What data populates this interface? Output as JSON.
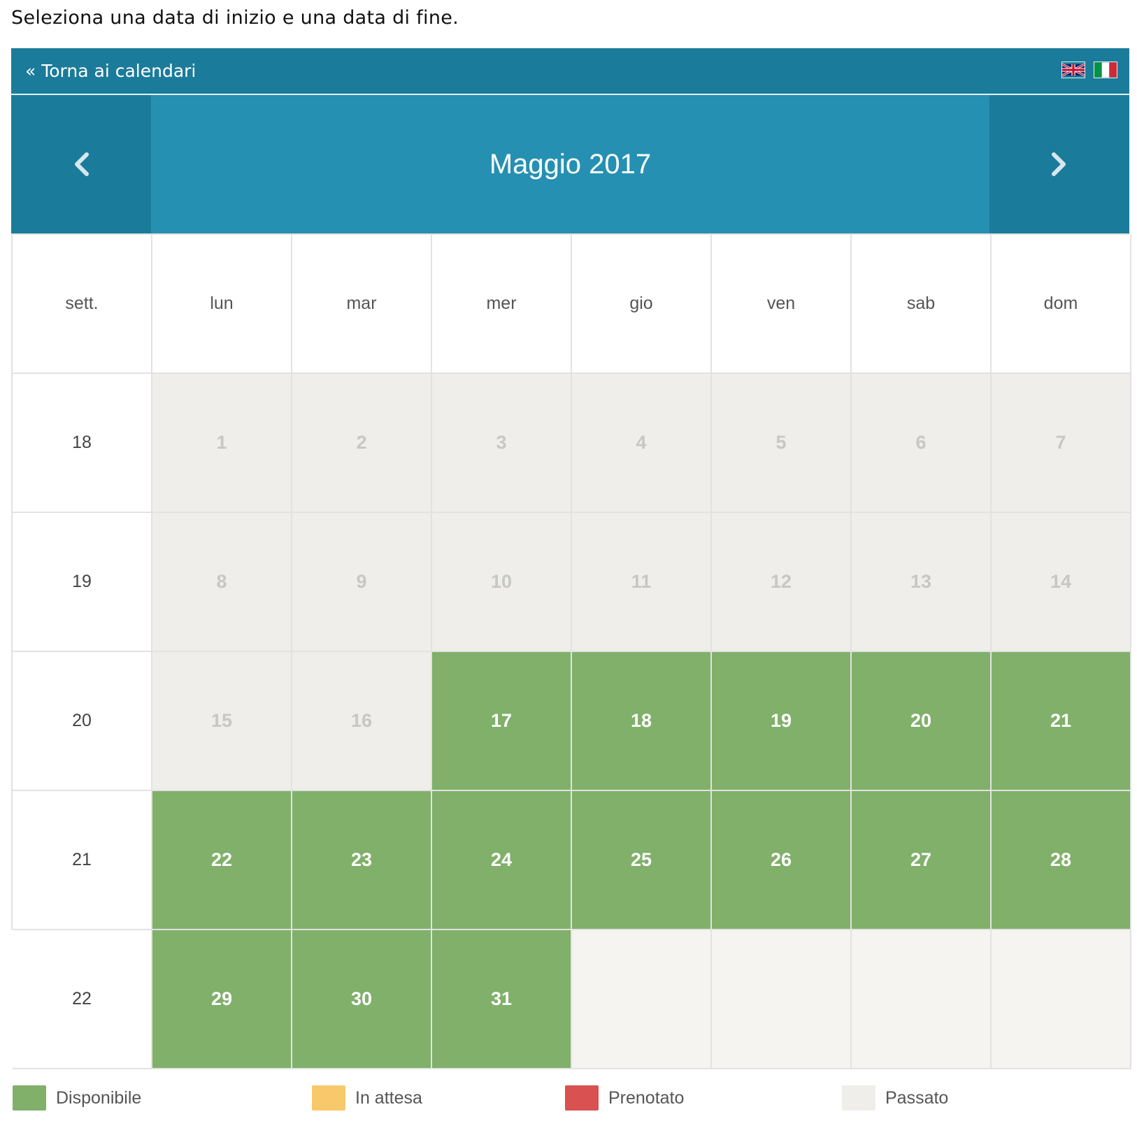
{
  "instruction": "Seleziona una data di inizio e una data di fine.",
  "topbar": {
    "back_label": "« Torna ai calendari",
    "flags": [
      {
        "icon": "uk-flag-icon",
        "lang": "en"
      },
      {
        "icon": "italy-flag-icon",
        "lang": "it"
      }
    ]
  },
  "calendar": {
    "month_label": "Maggio 2017",
    "prev_icon": "chevron-left-icon",
    "next_icon": "chevron-right-icon",
    "headers": [
      "sett.",
      "lun",
      "mar",
      "mer",
      "gio",
      "ven",
      "sab",
      "dom"
    ],
    "weeks": [
      {
        "week": "18",
        "days": [
          {
            "day": "1",
            "status": "past"
          },
          {
            "day": "2",
            "status": "past"
          },
          {
            "day": "3",
            "status": "past"
          },
          {
            "day": "4",
            "status": "past"
          },
          {
            "day": "5",
            "status": "past"
          },
          {
            "day": "6",
            "status": "past"
          },
          {
            "day": "7",
            "status": "past"
          }
        ]
      },
      {
        "week": "19",
        "days": [
          {
            "day": "8",
            "status": "past"
          },
          {
            "day": "9",
            "status": "past"
          },
          {
            "day": "10",
            "status": "past"
          },
          {
            "day": "11",
            "status": "past"
          },
          {
            "day": "12",
            "status": "past"
          },
          {
            "day": "13",
            "status": "past"
          },
          {
            "day": "14",
            "status": "past"
          }
        ]
      },
      {
        "week": "20",
        "days": [
          {
            "day": "15",
            "status": "past"
          },
          {
            "day": "16",
            "status": "past"
          },
          {
            "day": "17",
            "status": "available"
          },
          {
            "day": "18",
            "status": "available"
          },
          {
            "day": "19",
            "status": "available"
          },
          {
            "day": "20",
            "status": "available"
          },
          {
            "day": "21",
            "status": "available"
          }
        ]
      },
      {
        "week": "21",
        "days": [
          {
            "day": "22",
            "status": "available"
          },
          {
            "day": "23",
            "status": "available"
          },
          {
            "day": "24",
            "status": "available"
          },
          {
            "day": "25",
            "status": "available"
          },
          {
            "day": "26",
            "status": "available"
          },
          {
            "day": "27",
            "status": "available"
          },
          {
            "day": "28",
            "status": "available"
          }
        ]
      },
      {
        "week": "22",
        "days": [
          {
            "day": "29",
            "status": "available"
          },
          {
            "day": "30",
            "status": "available"
          },
          {
            "day": "31",
            "status": "available"
          },
          {
            "day": "",
            "status": "empty"
          },
          {
            "day": "",
            "status": "empty"
          },
          {
            "day": "",
            "status": "empty"
          },
          {
            "day": "",
            "status": "empty"
          }
        ]
      }
    ]
  },
  "legend": [
    {
      "label": "Disponibile",
      "color": "#80b06a"
    },
    {
      "label": "In attesa",
      "color": "#f7c96a"
    },
    {
      "label": "Prenotato",
      "color": "#da5152"
    },
    {
      "label": "Passato",
      "color": "#efeeea"
    }
  ],
  "colors": {
    "topbar": "#1b7b9a",
    "nav": "#2590b1",
    "available": "#80b06a",
    "past": "#efeeea"
  }
}
